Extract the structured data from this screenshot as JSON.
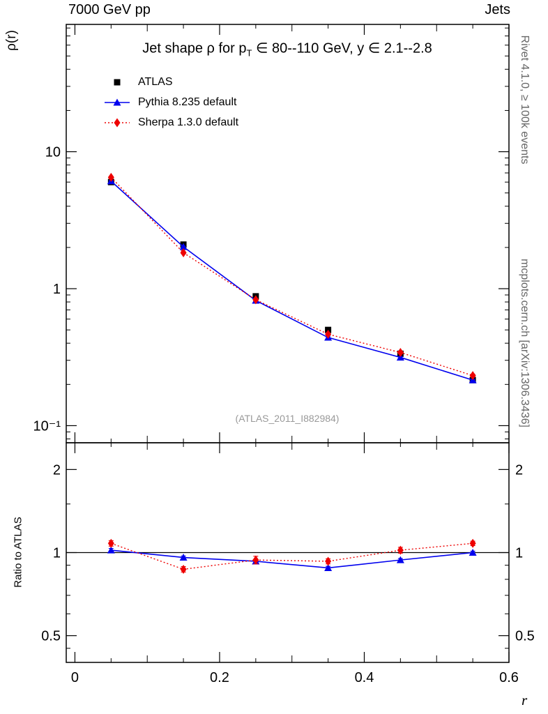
{
  "header": {
    "left": "7000 GeV pp",
    "right": "Jets"
  },
  "side_texts": {
    "top": "Rivet 4.1.0, ≥ 100k events",
    "bottom": "mcplots.cern.ch [arXiv:1306.3436]"
  },
  "watermark": "(ATLAS_2011_I882984)",
  "chart_data": {
    "type": "line",
    "title": "Jet shape ρ for p_T ∈ 80--110 GeV, y ∈ 2.1--2.8",
    "title_parts": {
      "pre": "Jet shape ρ for p",
      "sub": "T",
      "post": " ∈ 80--110 GeV, y ∈ 2.1--2.8"
    },
    "xlabel": "r",
    "ylabel": "ρ(r)",
    "ratio_ylabel": "Ratio to ATLAS",
    "legend_position": "top-left",
    "grid": false,
    "x": [
      0.05,
      0.15,
      0.25,
      0.35,
      0.45,
      0.55
    ],
    "xlim": [
      -0.012,
      0.6
    ],
    "xticks": [
      {
        "v": 0,
        "label": "0"
      },
      {
        "v": 0.2,
        "label": "0.2"
      },
      {
        "v": 0.4,
        "label": "0.4"
      },
      {
        "v": 0.6,
        "label": "0.6"
      }
    ],
    "top_panel": {
      "yscale": "log",
      "ylim": [
        0.075,
        85
      ],
      "yticks": [
        {
          "v": 10,
          "label": "10"
        },
        {
          "v": 1,
          "label": "1"
        },
        {
          "v": 0.1,
          "label": "10⁻¹"
        }
      ]
    },
    "series": [
      {
        "name": "ATLAS",
        "color": "#000000",
        "marker": "square",
        "line": "none",
        "values": [
          6.0,
          2.1,
          0.88,
          0.5,
          0.335,
          0.215
        ],
        "yerr": [
          0.15,
          0.05,
          0.02,
          0.012,
          0.008,
          0.006
        ]
      },
      {
        "name": "Pythia 8.235 default",
        "color": "#0000ee",
        "marker": "triangle",
        "line": "solid",
        "values": [
          6.1,
          2.02,
          0.82,
          0.44,
          0.315,
          0.215
        ],
        "yerr": [
          0.06,
          0.02,
          0.01,
          0.006,
          0.004,
          0.003
        ]
      },
      {
        "name": "Sherpa 1.3.0 default",
        "color": "#ee0000",
        "marker": "diamond",
        "line": "dotted",
        "values": [
          6.5,
          1.83,
          0.83,
          0.465,
          0.342,
          0.232
        ],
        "yerr": [
          0.1,
          0.03,
          0.015,
          0.01,
          0.007,
          0.005
        ]
      }
    ],
    "ratio_panel": {
      "yscale": "log",
      "ylim": [
        0.4,
        2.5
      ],
      "yticks": [
        {
          "v": 2,
          "label": "2"
        },
        {
          "v": 1,
          "label": "1"
        },
        {
          "v": 0.5,
          "label": "0.5"
        }
      ],
      "series": [
        {
          "name": "Pythia 8.235 default",
          "color": "#0000ee",
          "marker": "triangle",
          "line": "solid",
          "values": [
            1.02,
            0.96,
            0.93,
            0.88,
            0.94,
            1.0
          ],
          "yerr": [
            0.015,
            0.012,
            0.012,
            0.012,
            0.012,
            0.012
          ]
        },
        {
          "name": "Sherpa 1.3.0 default",
          "color": "#ee0000",
          "marker": "diamond",
          "line": "dotted",
          "values": [
            1.08,
            0.87,
            0.94,
            0.93,
            1.02,
            1.08
          ],
          "yerr": [
            0.025,
            0.02,
            0.03,
            0.02,
            0.025,
            0.02
          ]
        }
      ]
    }
  }
}
